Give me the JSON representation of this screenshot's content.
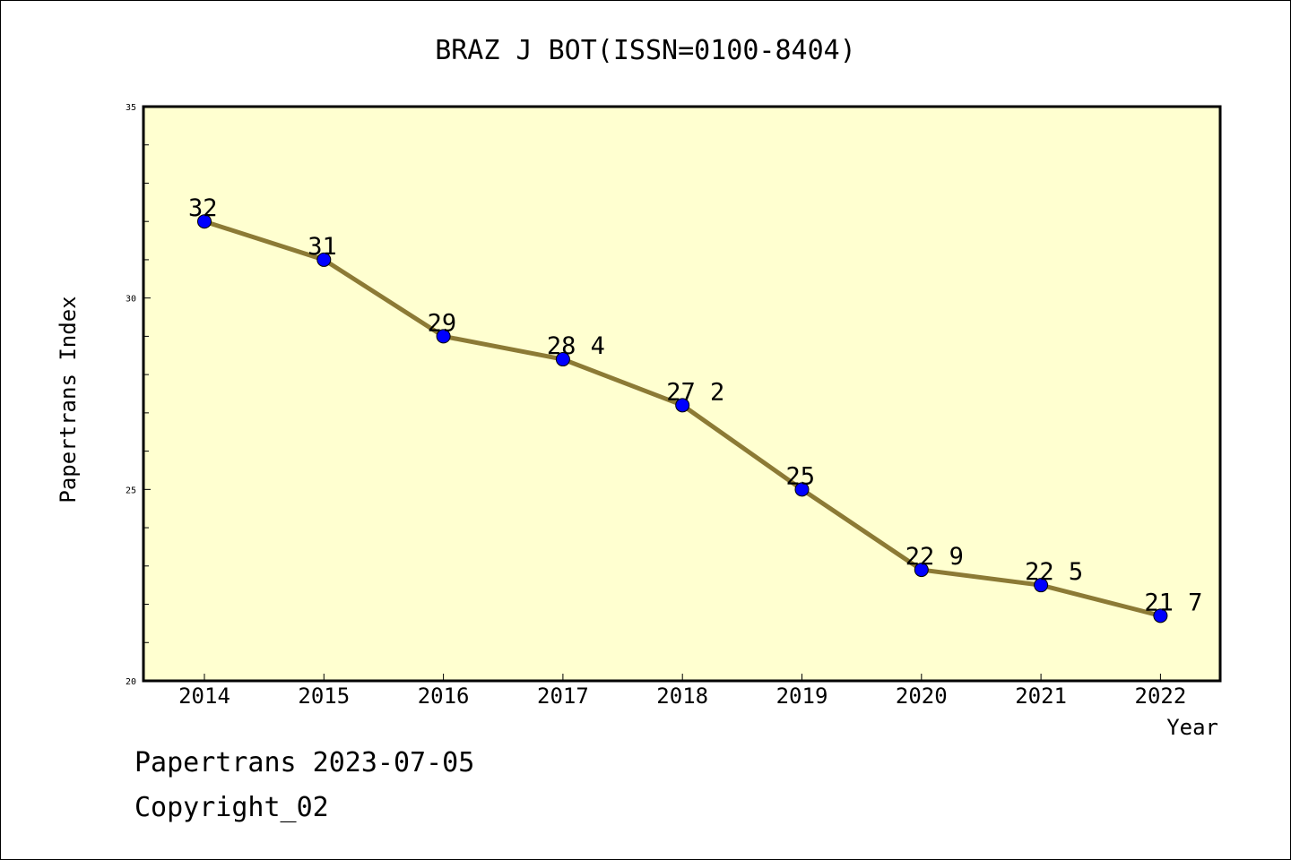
{
  "footer": {
    "line1": "Papertrans 2023-07-05",
    "line2": "Copyright_02"
  },
  "colors": {
    "plot_background": "#FFFFD0",
    "line": "#8C7A35",
    "marker": "#0000FF"
  },
  "chart_data": {
    "type": "line",
    "title": "BRAZ J BOT(ISSN=0100-8404)",
    "xlabel": "Year",
    "ylabel": "Papertrans Index",
    "x": [
      "2014",
      "2015",
      "2016",
      "2017",
      "2018",
      "2019",
      "2020",
      "2021",
      "2022"
    ],
    "series": [
      {
        "values": [
          32,
          31,
          29,
          28.4,
          27.2,
          25,
          22.9,
          22.5,
          21.7
        ],
        "labels": [
          "32",
          "31",
          "29",
          "28 4",
          "27 2",
          "25",
          "22 9",
          "22 5",
          "21 7"
        ]
      }
    ],
    "ylim": [
      20,
      35
    ],
    "yticks": [
      "20",
      "25",
      "30",
      "35"
    ],
    "grid": false,
    "legend": "none"
  }
}
